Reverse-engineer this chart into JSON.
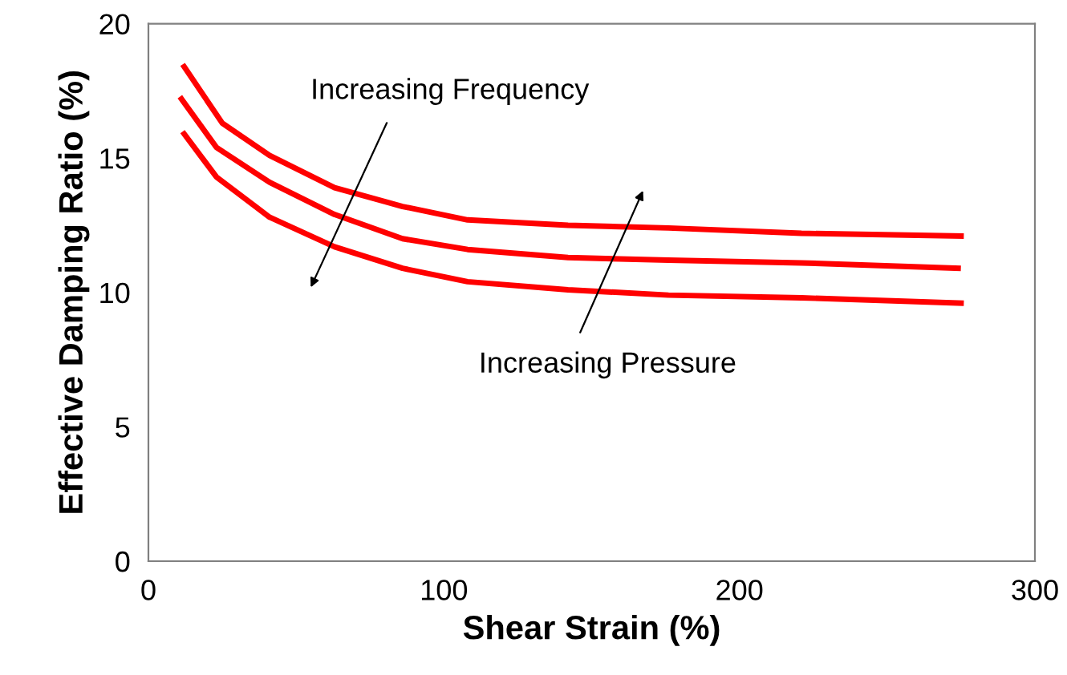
{
  "chart_data": {
    "type": "line",
    "xlabel": "Shear Strain (%)",
    "ylabel": "Effective Damping Ratio (%)",
    "xlim": [
      0,
      300
    ],
    "ylim": [
      0,
      20
    ],
    "xticks": [
      0,
      100,
      200,
      300
    ],
    "yticks": [
      0,
      5,
      10,
      15,
      20
    ],
    "grid": false,
    "legend": false,
    "marker": "none",
    "line_style": "solid",
    "series": [
      {
        "color": "#ff0000",
        "x": [
          12.1,
          25,
          41,
          63,
          86,
          108,
          142,
          176,
          221,
          275
        ],
        "values": [
          18.4,
          16.3,
          15.1,
          13.9,
          13.2,
          12.7,
          12.5,
          12.4,
          12.2,
          12.1
        ]
      },
      {
        "color": "#ff0000",
        "x": [
          11.2,
          23,
          41,
          63,
          86,
          108,
          142,
          176,
          221,
          274
        ],
        "values": [
          17.2,
          15.4,
          14.1,
          12.9,
          12.0,
          11.6,
          11.3,
          11.2,
          11.1,
          10.9
        ]
      },
      {
        "color": "#ff0000",
        "x": [
          12.1,
          23,
          41,
          63,
          86,
          108,
          142,
          176,
          221,
          275
        ],
        "values": [
          15.9,
          14.3,
          12.8,
          11.7,
          10.9,
          10.4,
          10.1,
          9.9,
          9.8,
          9.6
        ]
      }
    ],
    "annotations": [
      "Increasing Frequency",
      "Increasing Pressure"
    ]
  }
}
